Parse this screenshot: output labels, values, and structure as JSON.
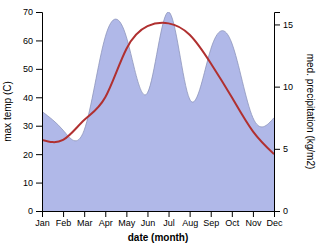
{
  "chart_data": {
    "type": "line",
    "xlabel": "date (month)",
    "ylabel": "max temp (C)",
    "y2label": "med. precipitation (kg/m2)",
    "categories": [
      "Jan",
      "Feb",
      "Mar",
      "Apr",
      "May",
      "Jun",
      "Jul",
      "Aug",
      "Sep",
      "Oct",
      "Nov",
      "Dec"
    ],
    "series": [
      {
        "type": "area",
        "axis": "y2",
        "color": "#b0b8e8",
        "values": [
          8.0,
          6.5,
          6.5,
          14.0,
          14.0,
          9.5,
          16.0,
          9.0,
          13.0,
          13.5,
          7.5,
          7.5
        ]
      },
      {
        "type": "line",
        "color": "#b03030",
        "values": [
          25,
          25,
          32,
          40,
          57,
          65,
          66,
          62,
          52,
          40,
          28,
          20
        ]
      }
    ],
    "ylim": [
      0,
      70
    ],
    "yticks": [
      0,
      10,
      20,
      30,
      40,
      50,
      60,
      70
    ],
    "y2lim": [
      0,
      16
    ],
    "y2ticks": [
      0,
      5,
      10,
      15
    ],
    "grid": false
  }
}
